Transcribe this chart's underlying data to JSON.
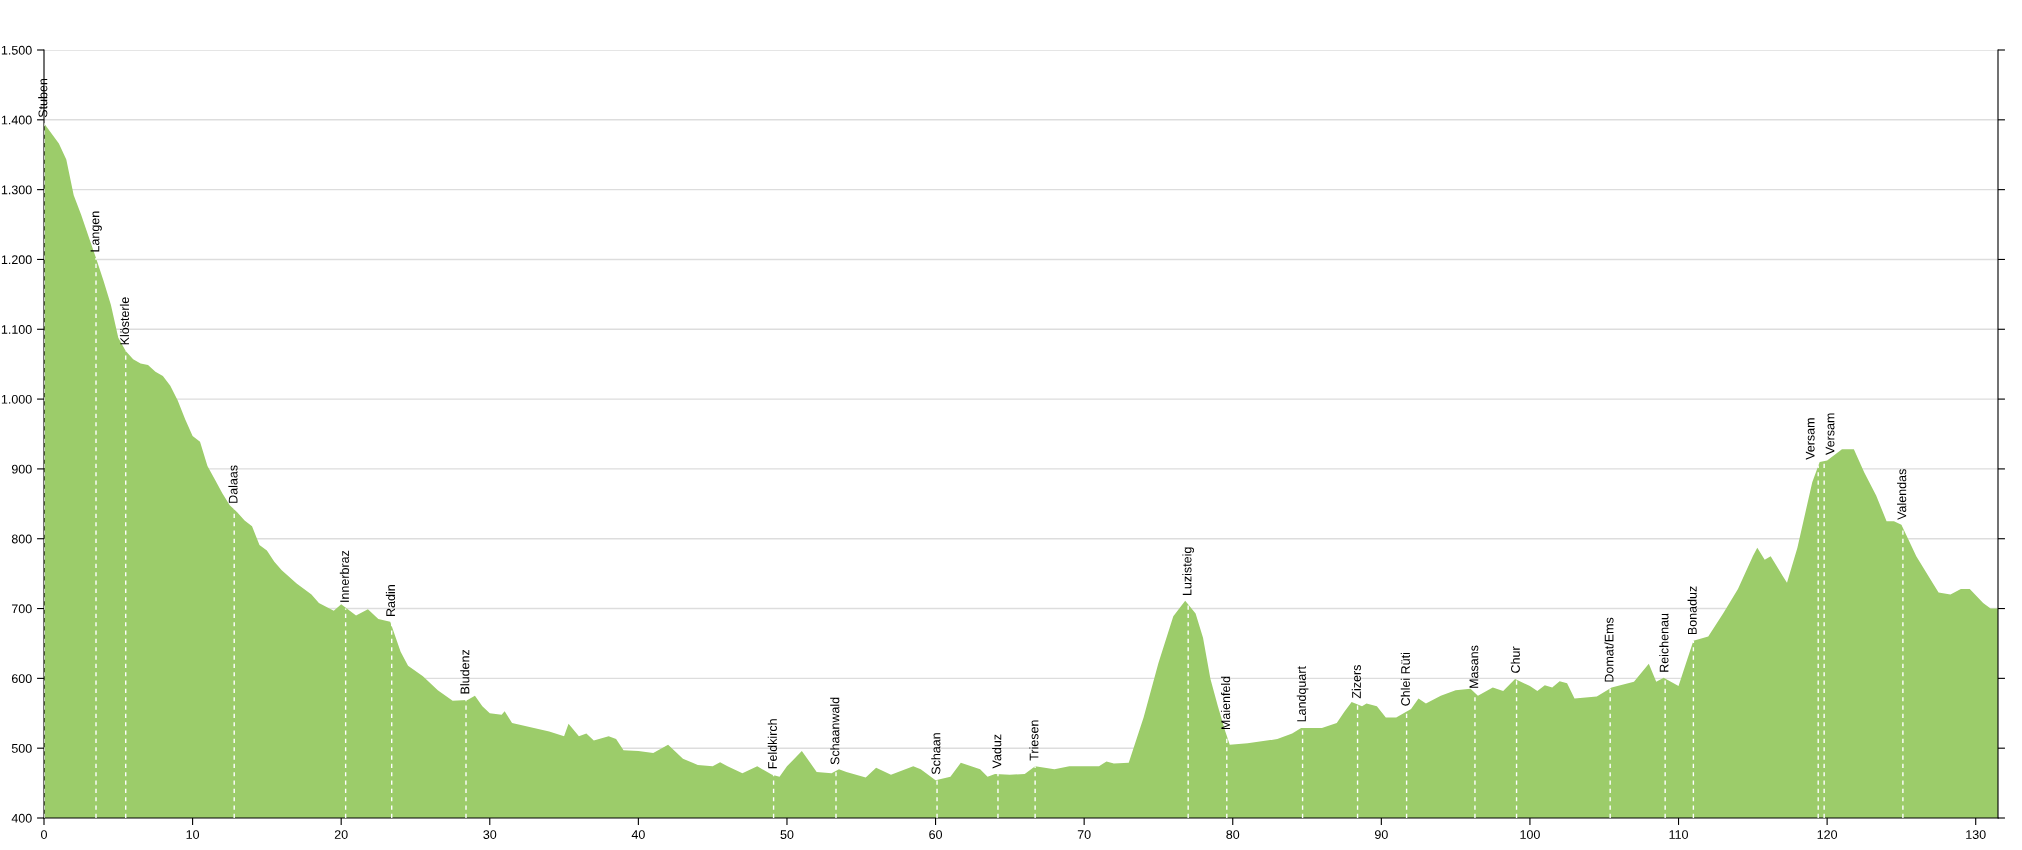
{
  "chart_data": {
    "type": "area",
    "x": [
      0,
      1,
      1.5,
      2,
      2.5,
      3,
      3.5,
      4,
      4.5,
      5,
      5.5,
      6,
      6.5,
      7,
      7.5,
      8,
      8.5,
      9,
      9.5,
      10,
      10.5,
      11,
      11.5,
      12,
      12.5,
      13,
      13.5,
      14,
      14.5,
      15,
      15.5,
      16,
      17,
      18,
      18.5,
      19.5,
      20,
      21,
      21.8,
      22.5,
      23.3,
      24,
      24.5,
      25.5,
      26.5,
      27.5,
      28.5,
      29,
      29.5,
      30,
      30.8,
      31,
      31.5,
      34,
      35,
      35.3,
      36,
      36.5,
      37,
      38,
      38.5,
      39,
      40,
      41,
      42,
      43,
      44,
      45,
      45.5,
      46,
      47,
      48,
      49,
      49.5,
      50,
      51,
      52,
      53,
      53.5,
      54,
      55.3,
      56,
      57,
      58.5,
      59,
      60,
      61,
      61.7,
      63,
      63.5,
      64,
      65,
      66,
      66.7,
      68,
      69,
      71,
      71.5,
      72,
      73,
      74,
      75,
      76,
      76.8,
      77.5,
      78,
      78.5,
      79,
      79.5,
      79.8,
      81,
      83,
      84,
      84.6,
      86,
      87,
      87.5,
      88,
      88.7,
      89,
      89.7,
      90.3,
      91,
      92,
      92.5,
      93,
      94,
      95,
      96,
      96.5,
      97.5,
      98.2,
      99,
      100,
      100.5,
      101,
      101.5,
      102,
      102.5,
      103,
      104.5,
      105.5,
      107,
      108,
      108.5,
      109,
      110,
      111,
      112,
      113,
      114,
      115,
      115.3,
      115.8,
      116.2,
      117,
      117.3,
      118,
      119,
      119.5,
      120,
      121,
      121.8,
      122.5,
      123.3,
      124,
      124.5,
      125,
      126,
      127,
      127.5,
      128.3,
      129,
      129.6,
      130.5,
      131,
      131.5
    ],
    "series": [
      {
        "color": "#9ccc6a",
        "values": [
          1395,
          1366,
          1343,
          1292,
          1264,
          1233,
          1202,
          1170,
          1135,
          1088,
          1069,
          1057,
          1051,
          1049,
          1039,
          1033,
          1019,
          998,
          971,
          947,
          939,
          904,
          885,
          865,
          848,
          838,
          826,
          818,
          791,
          783,
          767,
          755,
          736,
          720,
          708,
          697,
          706,
          690,
          699,
          685,
          681,
          638,
          618,
          603,
          583,
          568,
          569,
          575,
          560,
          550,
          548,
          553,
          536,
          524,
          517,
          535,
          517,
          521,
          511,
          517,
          513,
          497,
          496,
          493,
          505,
          485,
          476,
          474,
          480,
          474,
          464,
          474,
          462,
          459,
          474,
          496,
          466,
          464,
          470,
          466,
          458,
          472,
          462,
          474,
          470,
          454,
          459,
          479,
          470,
          459,
          463,
          462,
          463,
          474,
          470,
          474,
          474,
          481,
          478,
          479,
          544,
          622,
          689,
          711,
          693,
          658,
          599,
          560,
          524,
          505,
          507,
          513,
          521,
          529,
          529,
          536,
          552,
          566,
          560,
          564,
          560,
          544,
          544,
          556,
          571,
          564,
          575,
          583,
          585,
          575,
          587,
          582,
          599,
          589,
          582,
          590,
          587,
          596,
          593,
          571,
          574,
          587,
          595,
          621,
          595,
          601,
          589,
          654,
          660,
          693,
          728,
          775,
          787,
          770,
          775,
          747,
          737,
          787,
          881,
          910,
          912,
          928,
          928,
          895,
          862,
          825,
          825,
          820,
          775,
          740,
          723,
          720,
          728,
          728,
          708,
          700,
          700
        ]
      }
    ],
    "xlim": [
      0,
      131.5
    ],
    "ylim": [
      400,
      1500
    ],
    "xticks": [
      0,
      10,
      20,
      30,
      40,
      50,
      60,
      70,
      80,
      90,
      100,
      110,
      120,
      130
    ],
    "yticks": [
      {
        "value": 400,
        "label": "400"
      },
      {
        "value": 500,
        "label": "500"
      },
      {
        "value": 600,
        "label": "600"
      },
      {
        "value": 700,
        "label": "700"
      },
      {
        "value": 800,
        "label": "800"
      },
      {
        "value": 900,
        "label": "900"
      },
      {
        "value": 1000,
        "label": "1.000"
      },
      {
        "value": 1100,
        "label": "1.100"
      },
      {
        "value": 1200,
        "label": "1.200"
      },
      {
        "value": 1300,
        "label": "1.300"
      },
      {
        "value": 1400,
        "label": "1.400"
      },
      {
        "value": 1500,
        "label": "1.500"
      }
    ],
    "grid": "y",
    "annotations": [
      {
        "text": "Stuben",
        "x": 0,
        "y": 1395
      },
      {
        "text": "Langen",
        "x": 3.5,
        "y": 1202
      },
      {
        "text": "Klösterle",
        "x": 5.5,
        "y": 1069
      },
      {
        "text": "Dalaas",
        "x": 12.8,
        "y": 842
      },
      {
        "text": "Innerbraz",
        "x": 20.3,
        "y": 700
      },
      {
        "text": "Radin",
        "x": 23.4,
        "y": 680
      },
      {
        "text": "Bludenz",
        "x": 28.4,
        "y": 569
      },
      {
        "text": "Feldkirch",
        "x": 49.1,
        "y": 462
      },
      {
        "text": "Schaanwald",
        "x": 53.3,
        "y": 468
      },
      {
        "text": "Schaan",
        "x": 60.1,
        "y": 454
      },
      {
        "text": "Vaduz",
        "x": 64.2,
        "y": 463
      },
      {
        "text": "Triesen",
        "x": 66.7,
        "y": 474
      },
      {
        "text": "Luzisteig",
        "x": 77.0,
        "y": 710
      },
      {
        "text": "Maienfeld",
        "x": 79.6,
        "y": 518
      },
      {
        "text": "Landquart",
        "x": 84.7,
        "y": 529
      },
      {
        "text": "Zizers",
        "x": 88.4,
        "y": 563
      },
      {
        "text": "Chlei Rüti",
        "x": 91.7,
        "y": 552
      },
      {
        "text": "Masans",
        "x": 96.3,
        "y": 577
      },
      {
        "text": "Chur",
        "x": 99.1,
        "y": 599
      },
      {
        "text": "Domat/Ems",
        "x": 105.4,
        "y": 586
      },
      {
        "text": "Reichenau",
        "x": 109.1,
        "y": 600
      },
      {
        "text": "Bonaduz",
        "x": 111.0,
        "y": 654
      },
      {
        "text": "Versam",
        "x": 119.4,
        "y": 905
      },
      {
        "text": "Versam",
        "x": 119.8,
        "y": 912
      },
      {
        "text": "Valendas",
        "x": 125.1,
        "y": 819
      }
    ]
  }
}
